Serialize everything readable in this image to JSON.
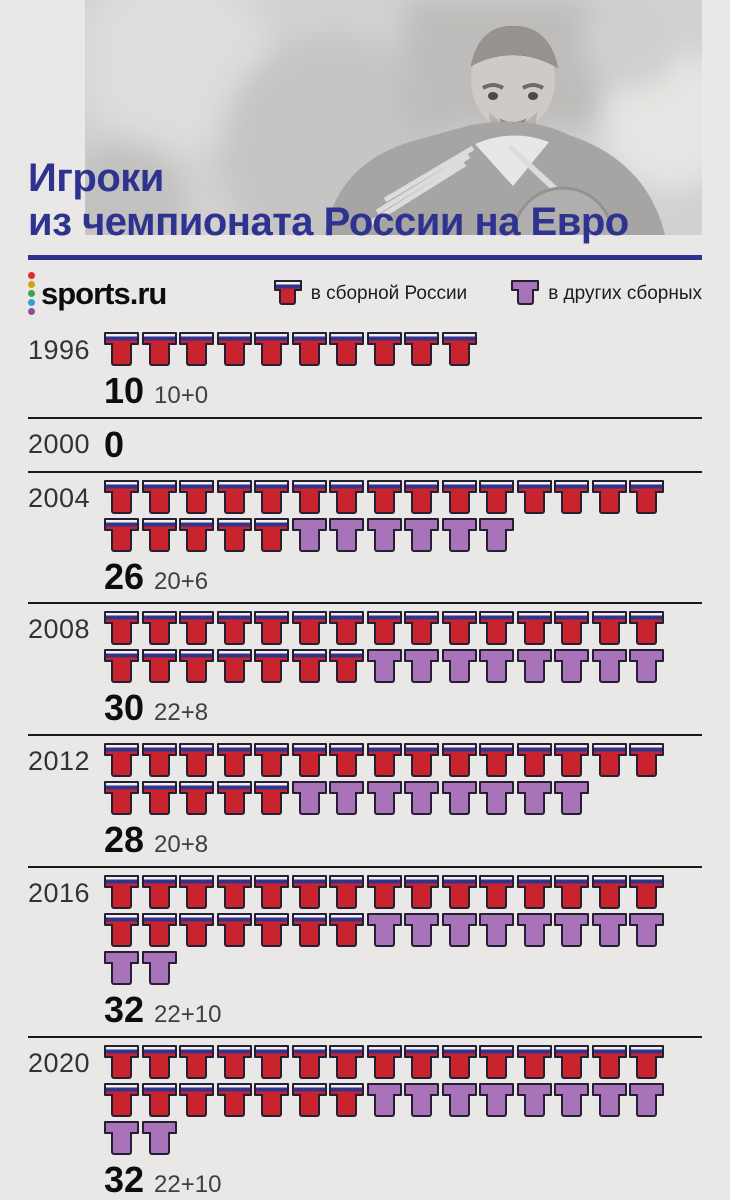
{
  "title": {
    "line1": "Игроки",
    "line2": "из чемпионата России на Евро"
  },
  "brand": {
    "name": "sports.ru",
    "dot_colors": [
      "#e0282e",
      "#c9a50a",
      "#43a047",
      "#2d9fd8",
      "#8e4d9e"
    ]
  },
  "colors": {
    "accent_indigo": "#2f3390",
    "russia_red": "#c9232e",
    "russia_flag_navy": "#32338c",
    "russia_flag_white": "#f2efec",
    "others_purple": "#a873b8",
    "background": "#e9e8e6",
    "divider": "#191919"
  },
  "chart_data": {
    "type": "bar",
    "subtype": "pictogram-tshirts",
    "categories": [
      "1996",
      "2000",
      "2004",
      "2008",
      "2012",
      "2016",
      "2020"
    ],
    "series": [
      {
        "name": "в сборной России",
        "color": "#c9232e",
        "values": [
          10,
          0,
          20,
          22,
          20,
          22,
          22
        ]
      },
      {
        "name": "в других сборных",
        "color": "#a873b8",
        "values": [
          0,
          0,
          6,
          8,
          8,
          10,
          10
        ]
      }
    ],
    "totals": [
      10,
      0,
      26,
      30,
      28,
      32,
      32
    ],
    "total_sublabels": [
      "10+0",
      "",
      "20+6",
      "22+8",
      "20+8",
      "22+10",
      "22+10"
    ],
    "icons_per_row": 15,
    "legend_position": "top",
    "title": "Игроки из чемпионата России на Евро"
  }
}
